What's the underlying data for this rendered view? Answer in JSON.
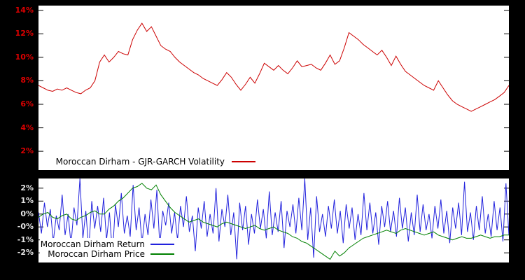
{
  "figure": {
    "background_color": "#000000",
    "plot_background": "#ffffff"
  },
  "chart_data": [
    {
      "type": "line",
      "title": "",
      "xlabel": "",
      "ylabel": "",
      "ylim": [
        0.4,
        14.4
      ],
      "grid": false,
      "tick_label_color": "#dd0000",
      "yticks": [
        {
          "value": 14,
          "label": "14%"
        },
        {
          "value": 12,
          "label": "12%"
        },
        {
          "value": 10,
          "label": "10%"
        },
        {
          "value": 8,
          "label": "8%"
        },
        {
          "value": 6,
          "label": "6%"
        },
        {
          "value": 4,
          "label": "4%"
        },
        {
          "value": 2,
          "label": "2%"
        }
      ],
      "legend": {
        "position": "bottom-left",
        "entries": [
          {
            "label": "Moroccan Dirham - GJR-GARCH Volatility",
            "color": "#cc0000"
          }
        ]
      },
      "series": [
        {
          "name": "Moroccan Dirham - GJR-GARCH Volatility",
          "color": "#cc0000",
          "unit": "%",
          "values": [
            7.6,
            7.4,
            7.2,
            7.1,
            7.3,
            7.2,
            7.4,
            7.2,
            7.0,
            6.9,
            7.2,
            7.4,
            8.0,
            9.6,
            10.2,
            9.6,
            10.0,
            10.5,
            10.3,
            10.2,
            11.5,
            12.3,
            12.9,
            12.2,
            12.6,
            11.8,
            11.0,
            10.7,
            10.5,
            10.0,
            9.6,
            9.3,
            9.0,
            8.7,
            8.5,
            8.2,
            8.0,
            7.8,
            7.6,
            8.1,
            8.7,
            8.3,
            7.7,
            7.2,
            7.7,
            8.3,
            7.8,
            8.6,
            9.5,
            9.2,
            8.9,
            9.3,
            8.9,
            8.6,
            9.1,
            9.7,
            9.2,
            9.3,
            9.4,
            9.1,
            8.9,
            9.5,
            10.2,
            9.4,
            9.7,
            10.8,
            12.1,
            11.8,
            11.5,
            11.1,
            10.8,
            10.5,
            10.2,
            10.6,
            10.0,
            9.3,
            10.1,
            9.4,
            8.8,
            8.5,
            8.2,
            7.9,
            7.6,
            7.4,
            7.2,
            8.0,
            7.4,
            6.8,
            6.3,
            6.0,
            5.8,
            5.6,
            5.4,
            5.6,
            5.8,
            6.0,
            6.2,
            6.4,
            6.7,
            7.0,
            7.6
          ]
        }
      ]
    },
    {
      "type": "line",
      "title": "",
      "xlabel": "",
      "ylabel": "",
      "ylim": [
        -2.6,
        2.6
      ],
      "grid": false,
      "tick_label_color": "#e6e6e6",
      "yticks": [
        {
          "value": 2.0,
          "label": "2%"
        },
        {
          "value": 1.2,
          "label": "1%"
        },
        {
          "value": 0.4,
          "label": "0%"
        },
        {
          "value": -0.4,
          "label": "-0%"
        },
        {
          "value": -1.2,
          "label": "-1%"
        },
        {
          "value": -2.0,
          "label": "-2%"
        }
      ],
      "legend": {
        "position": "bottom-left",
        "entries": [
          {
            "label": "Moroccan Dirham Return",
            "color": "#2222dd"
          },
          {
            "label": "Moroccan Dirham Price",
            "color": "#008000"
          }
        ]
      },
      "series": [
        {
          "name": "Moroccan Dirham Return",
          "color": "#2222dd",
          "unit": "%",
          "values": [
            0.5,
            -0.8,
            1.1,
            -0.4,
            0.7,
            -1.3,
            0.3,
            -0.6,
            1.6,
            -0.9,
            0.4,
            -1.5,
            0.8,
            -0.3,
            2.6,
            -1.1,
            0.6,
            -1.8,
            1.2,
            -0.5,
            0.9,
            -0.7,
            1.4,
            -1.2,
            0.5,
            -2.1,
            1.0,
            -0.4,
            1.7,
            -0.8,
            0.3,
            -1.0,
            2.2,
            -0.6,
            0.8,
            -1.4,
            0.4,
            -0.9,
            1.3,
            -0.5,
            1.9,
            -1.6,
            0.6,
            -0.3,
            1.1,
            -0.8,
            0.5,
            -1.2,
            0.9,
            -0.4,
            1.5,
            -0.7,
            0.3,
            -1.9,
            0.8,
            -0.5,
            1.2,
            -1.0,
            0.4,
            -0.8,
            2.0,
            -1.3,
            0.7,
            -0.4,
            1.6,
            -0.9,
            0.5,
            -2.4,
            1.1,
            -0.6,
            0.9,
            -1.5,
            0.4,
            -0.8,
            1.3,
            -0.5,
            0.7,
            -1.1,
            1.8,
            -0.9,
            0.5,
            -0.7,
            1.2,
            -1.7,
            0.6,
            -0.4,
            1.0,
            -0.8,
            1.4,
            -0.6,
            2.6,
            -1.2,
            0.8,
            -2.3,
            1.5,
            -0.7,
            0.4,
            -1.0,
            0.9,
            -0.5,
            1.3,
            -0.8,
            0.6,
            -1.4,
            1.0,
            -0.5,
            0.8,
            -1.2,
            0.4,
            -0.9,
            1.7,
            -0.6,
            1.1,
            -0.8,
            0.5,
            -1.5,
            0.9,
            -0.4,
            1.2,
            -0.7,
            0.6,
            -1.0,
            1.4,
            -0.5,
            0.8,
            -1.3,
            0.5,
            -0.9,
            1.6,
            -0.7,
            1.0,
            -0.6,
            0.4,
            -1.1,
            0.9,
            -0.5,
            1.3,
            -0.8,
            0.6,
            -1.4,
            0.8,
            -0.5,
            1.1,
            -0.9,
            2.4,
            -0.7,
            0.5,
            -1.2,
            0.9,
            -0.6,
            1.5,
            -0.8,
            0.4,
            -1.0,
            1.2,
            -0.6,
            0.8,
            -1.3,
            2.3,
            -0.9
          ]
        },
        {
          "name": "Moroccan Dirham Price",
          "color": "#008000",
          "unit": "%",
          "values": [
            0.2,
            0.4,
            0.5,
            0.2,
            0.1,
            0.3,
            0.4,
            0.1,
            0.0,
            0.2,
            0.3,
            0.5,
            0.6,
            0.4,
            0.4,
            0.7,
            0.9,
            1.2,
            1.4,
            1.7,
            2.0,
            2.1,
            2.3,
            2.0,
            1.9,
            2.2,
            1.6,
            1.2,
            0.8,
            0.5,
            0.3,
            0.1,
            -0.1,
            0.0,
            0.1,
            -0.1,
            -0.2,
            -0.3,
            -0.4,
            -0.2,
            -0.1,
            -0.2,
            -0.3,
            -0.4,
            -0.5,
            -0.4,
            -0.3,
            -0.5,
            -0.6,
            -0.5,
            -0.4,
            -0.6,
            -0.7,
            -0.8,
            -1.0,
            -1.1,
            -1.3,
            -1.4,
            -1.6,
            -1.8,
            -2.0,
            -2.2,
            -2.4,
            -1.9,
            -2.2,
            -2.0,
            -1.7,
            -1.5,
            -1.3,
            -1.1,
            -1.0,
            -0.9,
            -0.8,
            -0.7,
            -0.6,
            -0.7,
            -0.8,
            -0.6,
            -0.5,
            -0.6,
            -0.7,
            -0.8,
            -0.9,
            -0.8,
            -0.7,
            -0.9,
            -1.0,
            -1.1,
            -1.2,
            -1.1,
            -1.0,
            -1.1,
            -1.1,
            -1.0,
            -0.9,
            -1.0,
            -1.1,
            -1.0,
            -1.0,
            -0.9,
            -0.9
          ]
        }
      ]
    }
  ]
}
